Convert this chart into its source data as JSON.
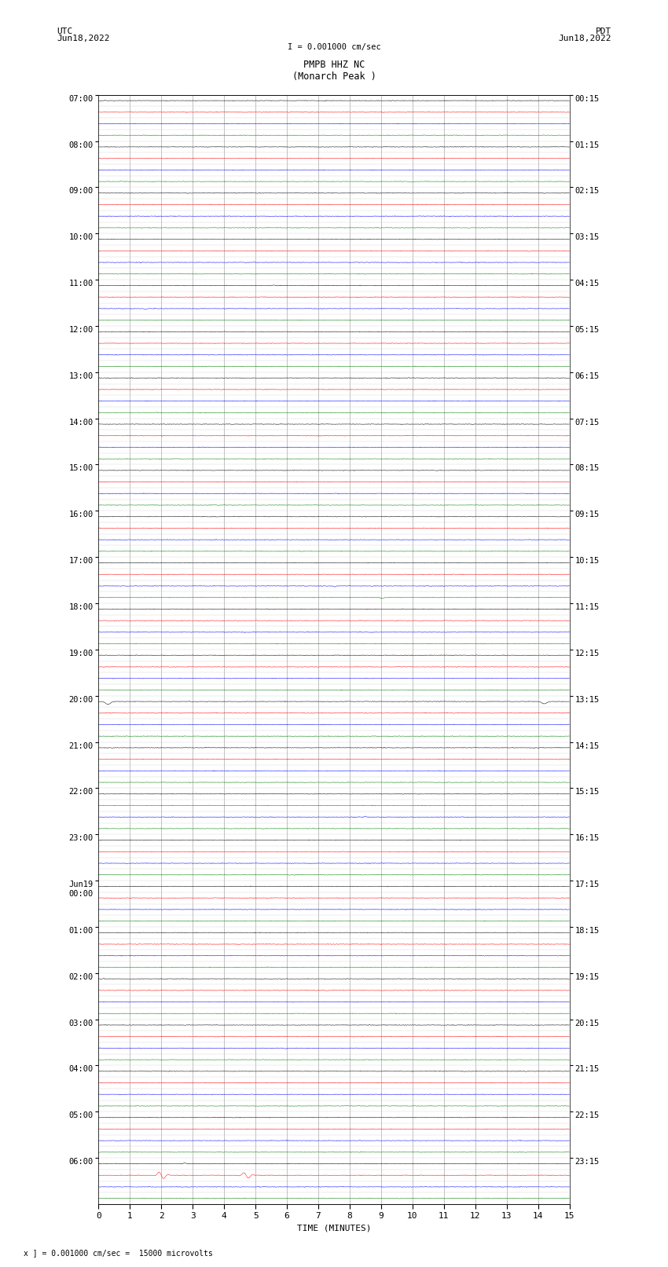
{
  "title_line1": "PMPB HHZ NC",
  "title_line2": "(Monarch Peak )",
  "scale_text": "I = 0.001000 cm/sec",
  "left_label": "UTC",
  "left_date": "Jun18,2022",
  "right_label": "PDT",
  "right_date": "Jun18,2022",
  "xlabel": "TIME (MINUTES)",
  "bottom_note": "x ] = 0.001000 cm/sec =  15000 microvolts",
  "xmin": 0,
  "xmax": 15,
  "trace_colors": [
    "black",
    "red",
    "blue",
    "green"
  ],
  "background_color": "white",
  "grid_color": "#aaaaaa",
  "noise_amplitude": 0.018,
  "sub_rows_per_hour": 4,
  "fig_width": 8.5,
  "fig_height": 16.13,
  "dpi": 100
}
